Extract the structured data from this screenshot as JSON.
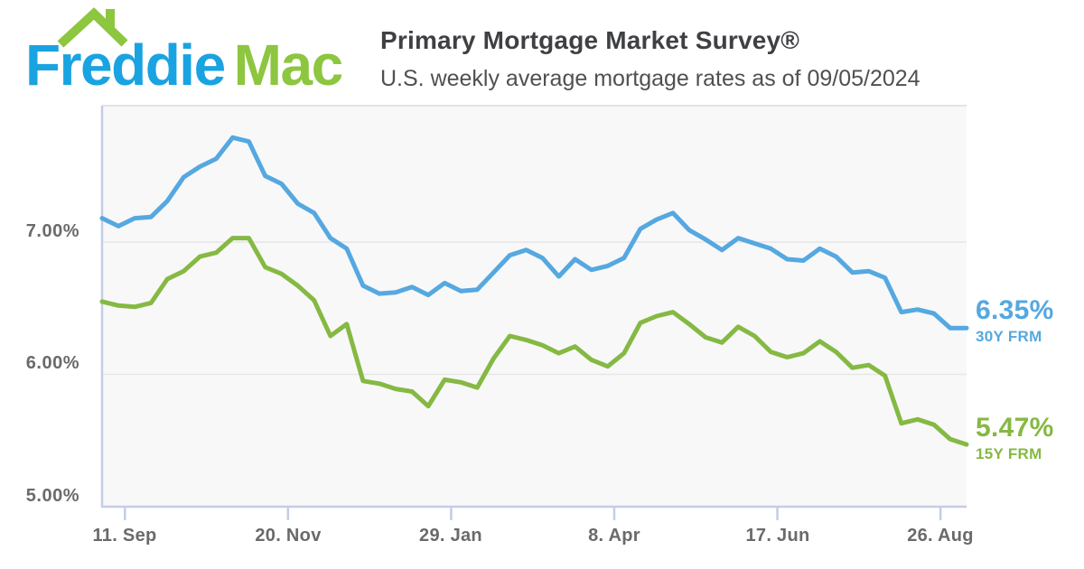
{
  "header": {
    "logo": {
      "word1": "Freddie",
      "word2": "Mac",
      "icon": "green-roof-with-chimney"
    },
    "title": "Primary Mortgage Market Survey®",
    "subtitle": "U.S. weekly average mortgage rates as of 09/05/2024"
  },
  "colors": {
    "logo_blue": "#1AA3E1",
    "logo_green": "#8DC63F",
    "line_blue_30y": "#55A8E0",
    "line_green_15y": "#85B943",
    "plot_background": "#F8F8F9",
    "gridline": "#E6E6E7",
    "axis_line": "#C3CDE6",
    "axis_text": "#6A6A6A"
  },
  "annotations": {
    "rate_30y_value": "6.35%",
    "rate_30y_label": "30Y FRM",
    "rate_15y_value": "5.47%",
    "rate_15y_label": "15Y FRM"
  },
  "chart_data": {
    "type": "line",
    "title": "U.S. weekly average mortgage rates as of 09/05/2024",
    "x_tick_labels": [
      "11. Sep",
      "20. Nov",
      "29. Jan",
      "8. Apr",
      "17. Jun",
      "26. Aug"
    ],
    "x_tick_week_positions": [
      1.4,
      11.4,
      21.4,
      31.4,
      41.4,
      51.4
    ],
    "y_tick_labels": [
      "7.00%",
      "6.00%",
      "5.00%"
    ],
    "y_tick_values": [
      7.0,
      6.0,
      5.0
    ],
    "ylim": [
      5.0,
      8.03
    ],
    "grid": "horizontal-only",
    "legend_position": "right-of-line-ends",
    "x_note": "weekly observations, left to right",
    "series": [
      {
        "name": "30Y FRM",
        "color": "#55A8E0",
        "end_label": "6.35%",
        "values": [
          7.18,
          7.12,
          7.18,
          7.19,
          7.31,
          7.49,
          7.57,
          7.63,
          7.79,
          7.76,
          7.5,
          7.44,
          7.29,
          7.22,
          7.03,
          6.95,
          6.67,
          6.61,
          6.62,
          6.66,
          6.6,
          6.69,
          6.63,
          6.64,
          6.77,
          6.9,
          6.94,
          6.88,
          6.74,
          6.87,
          6.79,
          6.82,
          6.88,
          7.1,
          7.17,
          7.22,
          7.09,
          7.02,
          6.94,
          7.03,
          6.99,
          6.95,
          6.87,
          6.86,
          6.95,
          6.89,
          6.77,
          6.78,
          6.73,
          6.47,
          6.49,
          6.46,
          6.35,
          6.35
        ]
      },
      {
        "name": "15Y FRM",
        "color": "#85B943",
        "end_label": "5.47%",
        "values": [
          6.55,
          6.52,
          6.51,
          6.54,
          6.72,
          6.78,
          6.89,
          6.92,
          7.03,
          7.03,
          6.81,
          6.76,
          6.67,
          6.56,
          6.29,
          6.38,
          5.95,
          5.93,
          5.89,
          5.87,
          5.76,
          5.96,
          5.94,
          5.9,
          6.12,
          6.29,
          6.26,
          6.22,
          6.16,
          6.21,
          6.11,
          6.06,
          6.16,
          6.39,
          6.44,
          6.47,
          6.38,
          6.28,
          6.24,
          6.36,
          6.29,
          6.17,
          6.13,
          6.16,
          6.25,
          6.17,
          6.05,
          6.07,
          5.99,
          5.63,
          5.66,
          5.62,
          5.51,
          5.47
        ]
      }
    ]
  }
}
